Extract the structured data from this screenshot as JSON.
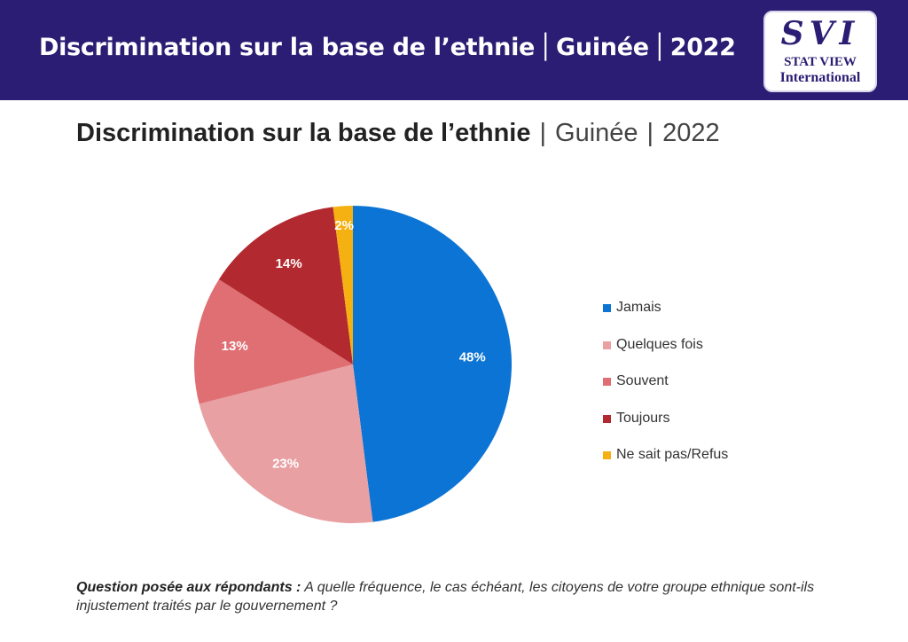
{
  "header": {
    "title": "Discrimination sur la base de l’ethnie",
    "country": "Guinée",
    "year": "2022",
    "logo": {
      "mark": "SVI",
      "line1": "STAT VIEW",
      "line2": "International"
    }
  },
  "chart_data": {
    "type": "pie",
    "title": "Discrimination sur la base de l’ethnie",
    "subtitle_country": "Guinée",
    "subtitle_year": "2022",
    "legend_position": "right",
    "slices": [
      {
        "name": "Jamais",
        "value": 48,
        "label": "48%",
        "color": "#0b74d4"
      },
      {
        "name": "Quelques fois",
        "value": 23,
        "label": "23%",
        "color": "#e8a0a3"
      },
      {
        "name": "Souvent",
        "value": 13,
        "label": "13%",
        "color": "#df6f72"
      },
      {
        "name": "Toujours",
        "value": 14,
        "label": "14%",
        "color": "#b22a2f"
      },
      {
        "name": "Ne sait pas/Refus",
        "value": 2,
        "label": "2%",
        "color": "#f5b111"
      }
    ]
  },
  "footnote": {
    "lead": "Question posée aux répondants :",
    "text": "A quelle fréquence, le cas échéant, les citoyens de votre groupe ethnique sont-ils injustement traités par le gouvernement ?"
  }
}
